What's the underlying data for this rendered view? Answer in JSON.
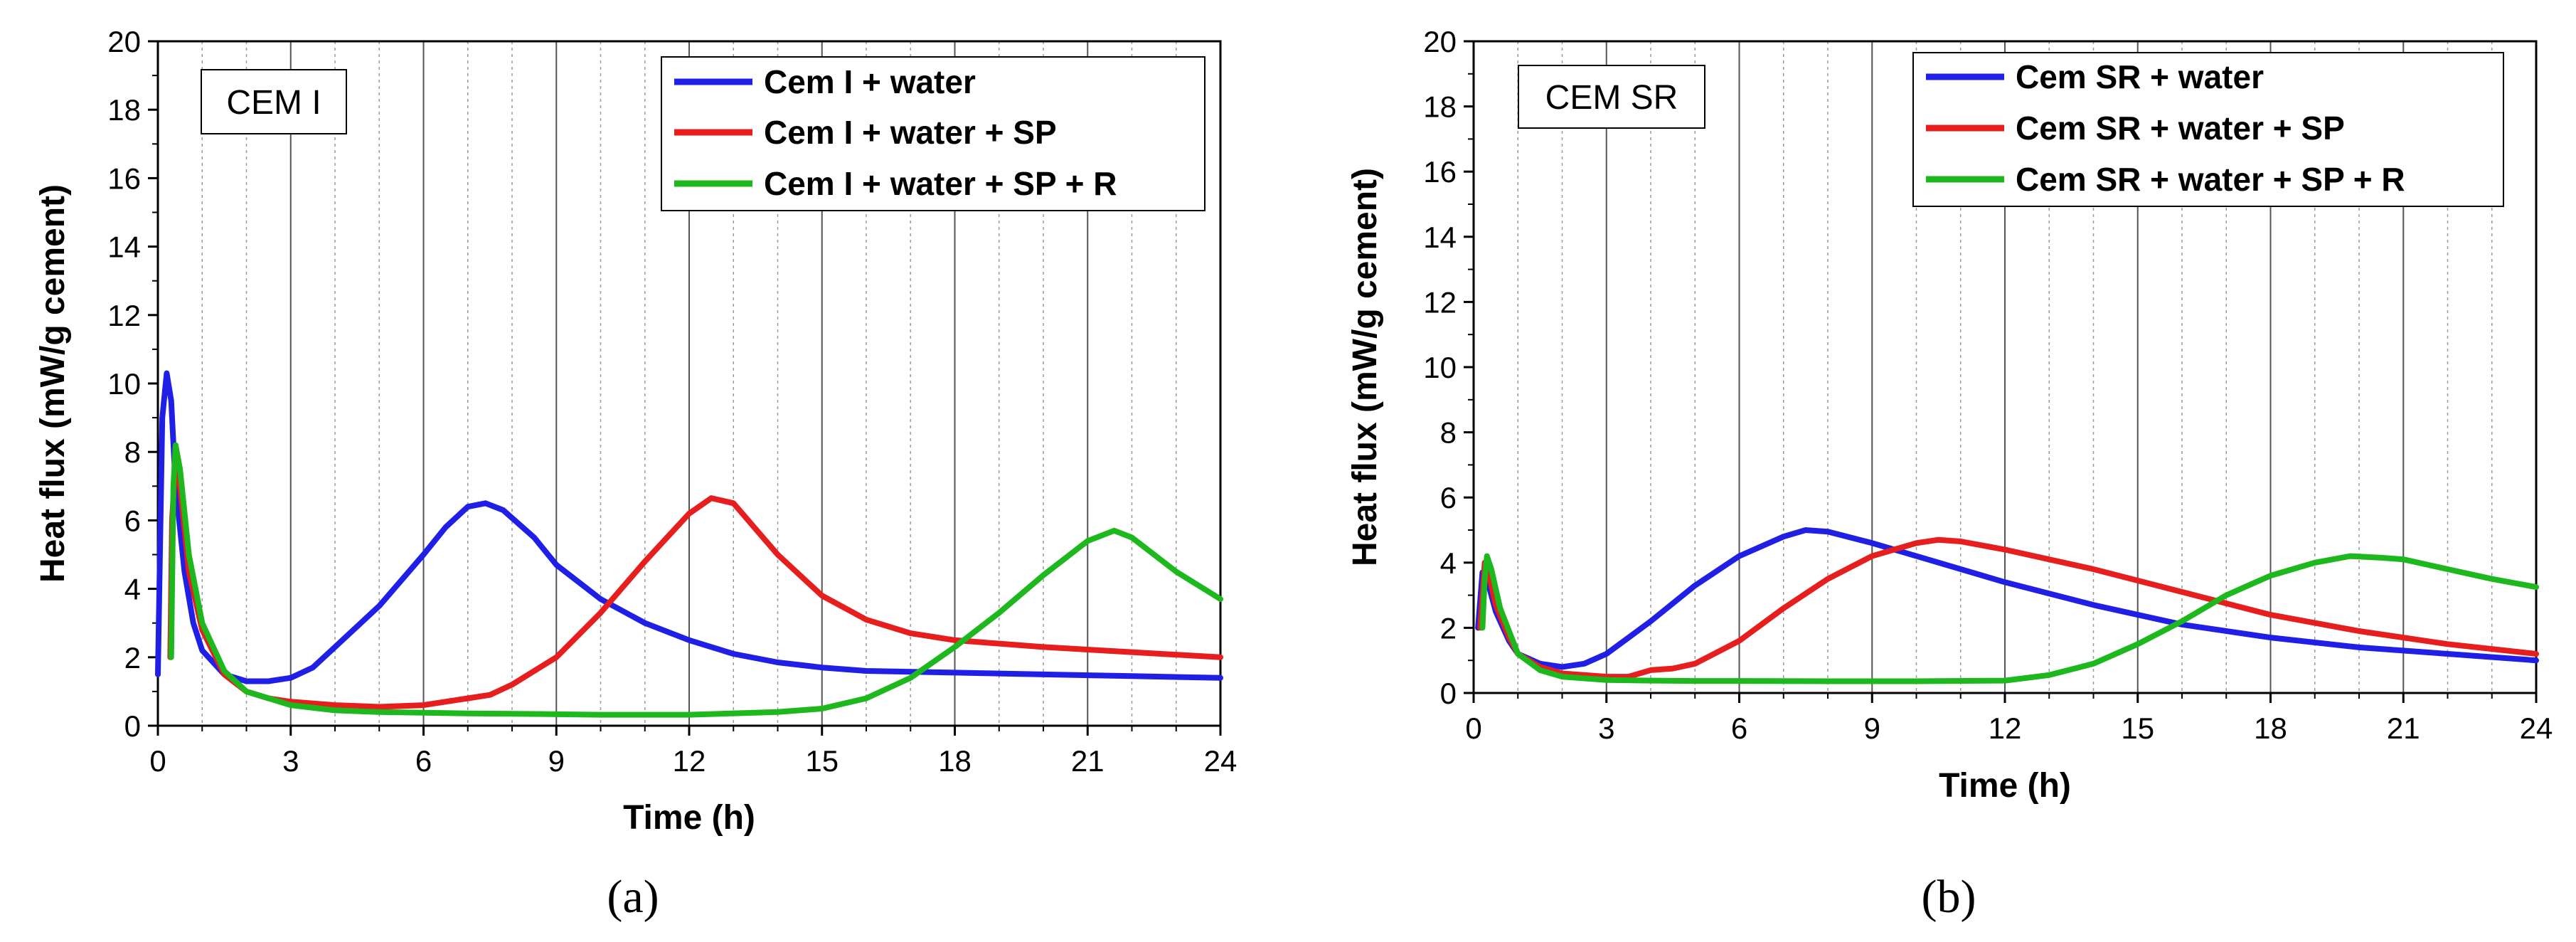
{
  "chart_data": [
    {
      "type": "line",
      "panel_label": "(a)",
      "annotation": "CEM I",
      "xlabel": "Time (h)",
      "ylabel": "Heat flux (mW/g cement)",
      "xlim": [
        0,
        24
      ],
      "ylim": [
        0,
        20
      ],
      "xticks": [
        "0",
        "3",
        "6",
        "9",
        "12",
        "15",
        "18",
        "21",
        "24"
      ],
      "yticks": [
        "0",
        "2",
        "4",
        "6",
        "8",
        "10",
        "12",
        "14",
        "16",
        "18",
        "20"
      ],
      "legend_position": "top-right",
      "series": [
        {
          "name": "Cem I + water",
          "color": "#1f1fe6",
          "points": [
            [
              0,
              1.5
            ],
            [
              0.1,
              9
            ],
            [
              0.2,
              10.3
            ],
            [
              0.3,
              9.5
            ],
            [
              0.4,
              7
            ],
            [
              0.6,
              4.5
            ],
            [
              0.8,
              3
            ],
            [
              1,
              2.2
            ],
            [
              1.5,
              1.5
            ],
            [
              2,
              1.3
            ],
            [
              2.5,
              1.3
            ],
            [
              3,
              1.4
            ],
            [
              3.5,
              1.7
            ],
            [
              4,
              2.3
            ],
            [
              5,
              3.5
            ],
            [
              6,
              5
            ],
            [
              6.5,
              5.8
            ],
            [
              7,
              6.4
            ],
            [
              7.4,
              6.5
            ],
            [
              7.8,
              6.3
            ],
            [
              8.5,
              5.5
            ],
            [
              9,
              4.7
            ],
            [
              10,
              3.7
            ],
            [
              11,
              3
            ],
            [
              12,
              2.5
            ],
            [
              13,
              2.1
            ],
            [
              14,
              1.85
            ],
            [
              15,
              1.7
            ],
            [
              16,
              1.6
            ],
            [
              18,
              1.55
            ],
            [
              20,
              1.5
            ],
            [
              22,
              1.45
            ],
            [
              24,
              1.4
            ]
          ]
        },
        {
          "name": "Cem I + water + SP",
          "color": "#e61e1e",
          "points": [
            [
              0.28,
              2
            ],
            [
              0.32,
              6
            ],
            [
              0.4,
              7.8
            ],
            [
              0.5,
              7
            ],
            [
              0.7,
              4.5
            ],
            [
              1,
              2.8
            ],
            [
              1.5,
              1.5
            ],
            [
              2,
              1
            ],
            [
              2.5,
              0.8
            ],
            [
              3,
              0.7
            ],
            [
              4,
              0.6
            ],
            [
              5,
              0.55
            ],
            [
              6,
              0.6
            ],
            [
              7,
              0.8
            ],
            [
              7.5,
              0.9
            ],
            [
              8,
              1.2
            ],
            [
              9,
              2
            ],
            [
              10,
              3.3
            ],
            [
              11,
              4.8
            ],
            [
              12,
              6.2
            ],
            [
              12.5,
              6.65
            ],
            [
              13,
              6.5
            ],
            [
              14,
              5
            ],
            [
              15,
              3.8
            ],
            [
              16,
              3.1
            ],
            [
              17,
              2.7
            ],
            [
              18,
              2.5
            ],
            [
              20,
              2.3
            ],
            [
              22,
              2.15
            ],
            [
              24,
              2
            ]
          ]
        },
        {
          "name": "Cem I + water + SP + R",
          "color": "#1db81d",
          "points": [
            [
              0.3,
              2
            ],
            [
              0.35,
              7
            ],
            [
              0.4,
              8.2
            ],
            [
              0.5,
              7.5
            ],
            [
              0.7,
              5
            ],
            [
              1,
              3
            ],
            [
              1.5,
              1.6
            ],
            [
              2,
              1
            ],
            [
              3,
              0.6
            ],
            [
              4,
              0.45
            ],
            [
              5,
              0.4
            ],
            [
              6,
              0.38
            ],
            [
              7,
              0.36
            ],
            [
              8,
              0.35
            ],
            [
              10,
              0.32
            ],
            [
              12,
              0.32
            ],
            [
              14,
              0.4
            ],
            [
              15,
              0.5
            ],
            [
              16,
              0.8
            ],
            [
              17,
              1.4
            ],
            [
              18,
              2.3
            ],
            [
              19,
              3.3
            ],
            [
              20,
              4.4
            ],
            [
              21,
              5.4
            ],
            [
              21.6,
              5.7
            ],
            [
              22,
              5.5
            ],
            [
              23,
              4.5
            ],
            [
              24,
              3.7
            ]
          ]
        }
      ]
    },
    {
      "type": "line",
      "panel_label": "(b)",
      "annotation": "CEM SR",
      "xlabel": "Time (h)",
      "ylabel": "Heat flux (mW/g cement)",
      "xlim": [
        0,
        24
      ],
      "ylim": [
        0,
        20
      ],
      "xticks": [
        "0",
        "3",
        "6",
        "9",
        "12",
        "15",
        "18",
        "21",
        "24"
      ],
      "yticks": [
        "0",
        "2",
        "4",
        "6",
        "8",
        "10",
        "12",
        "14",
        "16",
        "18",
        "20"
      ],
      "legend_position": "top-right",
      "series": [
        {
          "name": "Cem SR + water",
          "color": "#1f1fe6",
          "points": [
            [
              0.1,
              2
            ],
            [
              0.2,
              3.7
            ],
            [
              0.3,
              3.5
            ],
            [
              0.5,
              2.5
            ],
            [
              0.8,
              1.6
            ],
            [
              1,
              1.2
            ],
            [
              1.5,
              0.9
            ],
            [
              2,
              0.8
            ],
            [
              2.5,
              0.9
            ],
            [
              3,
              1.2
            ],
            [
              4,
              2.2
            ],
            [
              5,
              3.3
            ],
            [
              6,
              4.2
            ],
            [
              7,
              4.8
            ],
            [
              7.5,
              5
            ],
            [
              8,
              4.95
            ],
            [
              9,
              4.6
            ],
            [
              10,
              4.2
            ],
            [
              12,
              3.4
            ],
            [
              14,
              2.7
            ],
            [
              16,
              2.1
            ],
            [
              18,
              1.7
            ],
            [
              20,
              1.4
            ],
            [
              22,
              1.2
            ],
            [
              24,
              1
            ]
          ]
        },
        {
          "name": "Cem SR + water + SP",
          "color": "#e61e1e",
          "points": [
            [
              0.15,
              2
            ],
            [
              0.25,
              4
            ],
            [
              0.35,
              3.6
            ],
            [
              0.5,
              2.7
            ],
            [
              0.8,
              1.7
            ],
            [
              1,
              1.2
            ],
            [
              1.5,
              0.8
            ],
            [
              2,
              0.6
            ],
            [
              3,
              0.5
            ],
            [
              3.5,
              0.5
            ],
            [
              4,
              0.7
            ],
            [
              4.5,
              0.75
            ],
            [
              5,
              0.9
            ],
            [
              6,
              1.6
            ],
            [
              7,
              2.6
            ],
            [
              8,
              3.5
            ],
            [
              9,
              4.2
            ],
            [
              10,
              4.6
            ],
            [
              10.5,
              4.7
            ],
            [
              11,
              4.65
            ],
            [
              12,
              4.4
            ],
            [
              14,
              3.8
            ],
            [
              16,
              3.1
            ],
            [
              18,
              2.4
            ],
            [
              20,
              1.9
            ],
            [
              22,
              1.5
            ],
            [
              24,
              1.2
            ]
          ]
        },
        {
          "name": "Cem SR + water + SP + R",
          "color": "#1db81d",
          "points": [
            [
              0.2,
              2
            ],
            [
              0.25,
              3.5
            ],
            [
              0.3,
              4.2
            ],
            [
              0.4,
              3.8
            ],
            [
              0.6,
              2.6
            ],
            [
              1,
              1.2
            ],
            [
              1.5,
              0.7
            ],
            [
              2,
              0.5
            ],
            [
              3,
              0.4
            ],
            [
              4,
              0.38
            ],
            [
              5,
              0.37
            ],
            [
              6,
              0.37
            ],
            [
              8,
              0.36
            ],
            [
              10,
              0.36
            ],
            [
              12,
              0.38
            ],
            [
              13,
              0.55
            ],
            [
              14,
              0.9
            ],
            [
              15,
              1.5
            ],
            [
              16,
              2.2
            ],
            [
              17,
              3
            ],
            [
              18,
              3.6
            ],
            [
              19,
              4
            ],
            [
              19.8,
              4.2
            ],
            [
              20.5,
              4.15
            ],
            [
              21,
              4.1
            ],
            [
              22,
              3.8
            ],
            [
              23,
              3.5
            ],
            [
              24,
              3.25
            ]
          ]
        }
      ]
    }
  ]
}
